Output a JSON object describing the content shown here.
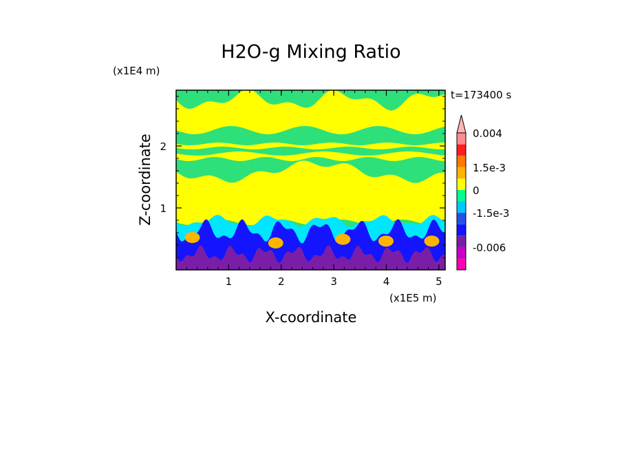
{
  "chart_data": {
    "type": "heatmap",
    "title": "H2O-g Mixing Ratio",
    "xlabel": "X-coordinate",
    "ylabel": "Z-coordinate",
    "x_unit_label": "(x1E5 m)",
    "y_unit_label": "(x1E4 m)",
    "time_label": "t=173400 s",
    "x_ticks": [
      {
        "value": 1,
        "label": "1"
      },
      {
        "value": 2,
        "label": "2"
      },
      {
        "value": 3,
        "label": "3"
      },
      {
        "value": 4,
        "label": "4"
      },
      {
        "value": 5,
        "label": "5"
      }
    ],
    "y_ticks": [
      {
        "value": 1,
        "label": "1"
      },
      {
        "value": 2,
        "label": "2"
      }
    ],
    "xlim": [
      0,
      5.12
    ],
    "ylim": [
      0,
      2.9
    ],
    "colorbar": {
      "levels": [
        {
          "label": "",
          "color": "#ff00b4"
        },
        {
          "label": "-0.006",
          "color": "#c800c8"
        },
        {
          "label": "",
          "color": "#7a1ea8"
        },
        {
          "label": "",
          "color": "#1414ff"
        },
        {
          "label": "-1.5e-3",
          "color": "#2850e6"
        },
        {
          "label": "",
          "color": "#00c8ff"
        },
        {
          "label": "0",
          "color": "#00ff8c"
        },
        {
          "label": "",
          "color": "#ffff00"
        },
        {
          "label": "1.5e-3",
          "color": "#ffb400"
        },
        {
          "label": "",
          "color": "#ff7800"
        },
        {
          "label": "",
          "color": "#ff1e1e"
        },
        {
          "label": "0.004",
          "color": "#ff8c8c"
        }
      ],
      "top_arrow_color": "#ffb4b4"
    },
    "field_layers": [
      {
        "name": "upper-moist-band",
        "color": "#2ee07a"
      },
      {
        "name": "mid-dry-band",
        "color": "#ffff00"
      },
      {
        "name": "boundary-layer-cyan",
        "color": "#00e6ff"
      },
      {
        "name": "boundary-layer-blue",
        "color": "#1414ff"
      },
      {
        "name": "surface-purple",
        "color": "#7a1ea8"
      },
      {
        "name": "plume-orange",
        "color": "#ffb400"
      }
    ]
  }
}
